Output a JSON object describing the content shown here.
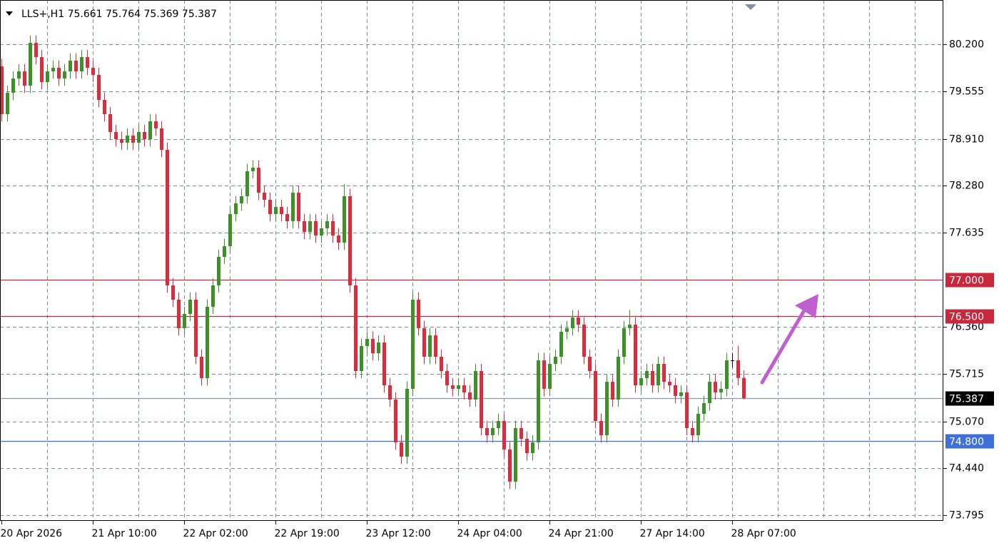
{
  "chart_data": {
    "type": "candlestick",
    "symbol": "LLS+,H1",
    "ylim": [
      73.717,
      80.802
    ],
    "yticks": [
      {
        "value": 80.2,
        "label": "80.200"
      },
      79.555,
      {
        "value": 78.91,
        "label": "78.910"
      },
      {
        "value": 78.28,
        "label": "78.280"
      },
      77.635,
      {
        "value": 76.36,
        "label": "76.360"
      },
      75.715,
      {
        "value": 75.07,
        "label": "75.070"
      },
      {
        "value": 74.44,
        "label": "74.440"
      },
      73.795
    ],
    "xticks": [
      {
        "value": 0,
        "label": "20 Apr 2026"
      },
      {
        "value": 16,
        "label": "21 Apr 10:00"
      },
      {
        "value": 32,
        "label": "22 Apr 02:00"
      },
      {
        "value": 48,
        "label": "22 Apr 19:00"
      },
      {
        "value": 64,
        "label": "23 Apr 12:00"
      },
      {
        "value": 80,
        "label": "24 Apr 04:00"
      },
      {
        "value": 96,
        "label": "24 Apr 21:00"
      },
      {
        "value": 112,
        "label": "27 Apr 14:00"
      },
      {
        "value": 128,
        "label": "28 Apr 07:00"
      }
    ],
    "grid": true,
    "up_color": "#3f8f2a",
    "down_color": "#d0303f",
    "flat_color": "#000000",
    "levels": [
      {
        "value": 77.0,
        "label": "77.000",
        "color": "#c8283c"
      },
      {
        "value": 76.5,
        "label": "76.500",
        "color": "#c8283c"
      },
      {
        "value": 74.8,
        "label": "74.800",
        "color": "#3f6fd8"
      }
    ],
    "ohlc": [
      [
        79.9,
        80.0,
        79.149,
        79.249
      ],
      [
        79.249,
        79.64,
        79.149,
        79.54
      ],
      [
        79.54,
        79.834,
        79.44,
        79.734
      ],
      [
        79.734,
        79.931,
        79.634,
        79.831
      ],
      [
        79.831,
        79.931,
        79.537,
        79.637
      ],
      [
        79.637,
        80.319,
        79.537,
        80.219
      ],
      [
        80.219,
        80.319,
        79.925,
        80.025
      ],
      [
        80.025,
        80.125,
        79.586,
        79.686
      ],
      [
        79.686,
        79.931,
        79.586,
        79.831
      ],
      [
        79.831,
        79.98,
        79.731,
        79.88
      ],
      [
        79.88,
        79.98,
        79.634,
        79.734
      ],
      [
        79.734,
        79.931,
        79.634,
        79.831
      ],
      [
        79.831,
        80.077,
        79.731,
        79.977
      ],
      [
        79.977,
        80.077,
        79.731,
        79.831
      ],
      [
        79.831,
        80.125,
        79.731,
        80.025
      ],
      [
        80.025,
        80.125,
        79.78,
        79.88
      ],
      [
        79.88,
        79.98,
        79.683,
        79.783
      ],
      [
        79.783,
        79.883,
        79.343,
        79.443
      ],
      [
        79.443,
        79.543,
        79.149,
        79.249
      ],
      [
        79.249,
        79.349,
        78.906,
        79.006
      ],
      [
        79.006,
        79.106,
        78.809,
        78.909
      ],
      [
        78.909,
        79.009,
        78.761,
        78.861
      ],
      [
        78.861,
        79.058,
        78.761,
        78.958
      ],
      [
        78.958,
        79.058,
        78.761,
        78.861
      ],
      [
        78.861,
        79.106,
        78.761,
        79.006
      ],
      [
        79.006,
        79.106,
        78.809,
        78.909
      ],
      [
        78.909,
        79.252,
        78.809,
        79.152
      ],
      [
        79.152,
        79.252,
        78.955,
        79.055
      ],
      [
        79.055,
        79.155,
        78.664,
        78.764
      ],
      [
        78.764,
        78.864,
        76.82,
        76.92
      ],
      [
        76.92,
        77.02,
        76.626,
        76.726
      ],
      [
        76.726,
        76.826,
        76.238,
        76.338
      ],
      [
        76.338,
        76.632,
        76.238,
        76.532
      ],
      [
        76.532,
        76.826,
        76.432,
        76.726
      ],
      [
        76.726,
        76.826,
        75.849,
        75.949
      ],
      [
        75.949,
        76.049,
        75.558,
        75.658
      ],
      [
        75.658,
        76.729,
        75.558,
        76.629
      ],
      [
        76.629,
        77.02,
        76.529,
        76.92
      ],
      [
        76.92,
        77.408,
        76.82,
        77.308
      ],
      [
        77.308,
        77.554,
        77.208,
        77.454
      ],
      [
        77.454,
        77.99,
        77.354,
        77.89
      ],
      [
        77.89,
        78.136,
        77.79,
        78.036
      ],
      [
        78.036,
        78.233,
        77.936,
        78.133
      ],
      [
        78.133,
        78.573,
        78.033,
        78.473
      ],
      [
        78.473,
        78.621,
        78.373,
        78.521
      ],
      [
        78.521,
        78.621,
        78.081,
        78.181
      ],
      [
        78.181,
        78.281,
        77.984,
        78.084
      ],
      [
        78.084,
        78.184,
        77.79,
        77.89
      ],
      [
        77.89,
        78.087,
        77.79,
        77.987
      ],
      [
        77.987,
        78.087,
        77.79,
        77.89
      ],
      [
        77.89,
        77.99,
        77.693,
        77.793
      ],
      [
        77.793,
        78.281,
        77.693,
        78.181
      ],
      [
        78.181,
        78.281,
        77.693,
        77.793
      ],
      [
        77.793,
        77.893,
        77.548,
        77.648
      ],
      [
        77.648,
        77.893,
        77.548,
        77.793
      ],
      [
        77.793,
        77.893,
        77.499,
        77.599
      ],
      [
        77.599,
        77.796,
        77.499,
        77.696
      ],
      [
        77.696,
        77.893,
        77.596,
        77.793
      ],
      [
        77.793,
        77.893,
        77.499,
        77.599
      ],
      [
        77.599,
        77.699,
        77.402,
        77.502
      ],
      [
        77.502,
        78.3,
        77.402,
        78.133
      ],
      [
        78.133,
        78.233,
        76.82,
        76.92
      ],
      [
        76.92,
        77.02,
        75.655,
        75.755
      ],
      [
        75.755,
        76.195,
        75.655,
        76.095
      ],
      [
        76.095,
        76.292,
        75.995,
        76.192
      ],
      [
        76.192,
        76.292,
        75.898,
        75.998
      ],
      [
        75.998,
        76.243,
        75.898,
        76.143
      ],
      [
        76.143,
        76.243,
        75.461,
        75.561
      ],
      [
        75.561,
        75.661,
        75.267,
        75.367
      ],
      [
        75.367,
        75.467,
        74.685,
        74.785
      ],
      [
        74.785,
        74.885,
        74.491,
        74.591
      ],
      [
        74.591,
        75.613,
        74.491,
        75.513
      ],
      [
        75.513,
        76.826,
        75.413,
        76.726
      ],
      [
        76.726,
        76.826,
        76.238,
        76.338
      ],
      [
        76.338,
        76.438,
        75.849,
        75.949
      ],
      [
        75.949,
        76.34,
        75.849,
        76.24
      ],
      [
        76.24,
        76.34,
        75.849,
        75.949
      ],
      [
        75.949,
        76.049,
        75.655,
        75.755
      ],
      [
        75.755,
        75.855,
        75.461,
        75.561
      ],
      [
        75.561,
        75.661,
        75.413,
        75.513
      ],
      [
        75.513,
        75.661,
        75.413,
        75.561
      ],
      [
        75.561,
        75.661,
        75.364,
        75.464
      ],
      [
        75.464,
        75.564,
        75.267,
        75.367
      ],
      [
        75.367,
        75.855,
        75.267,
        75.755
      ],
      [
        75.755,
        75.855,
        74.879,
        74.979
      ],
      [
        74.979,
        75.079,
        74.782,
        74.882
      ],
      [
        74.882,
        75.079,
        74.782,
        74.979
      ],
      [
        74.979,
        75.176,
        74.879,
        75.076
      ],
      [
        75.076,
        75.176,
        74.588,
        74.688
      ],
      [
        74.688,
        74.788,
        74.151,
        74.251
      ],
      [
        74.251,
        75.079,
        74.151,
        74.979
      ],
      [
        74.979,
        75.079,
        74.733,
        74.833
      ],
      [
        74.833,
        74.933,
        74.539,
        74.639
      ],
      [
        74.639,
        74.885,
        74.539,
        74.785
      ],
      [
        74.785,
        76.001,
        74.685,
        75.901
      ],
      [
        75.901,
        76.001,
        75.413,
        75.513
      ],
      [
        75.513,
        75.952,
        75.413,
        75.852
      ],
      [
        75.852,
        76.049,
        75.752,
        75.949
      ],
      [
        75.949,
        76.389,
        75.849,
        76.289
      ],
      [
        76.289,
        76.438,
        76.189,
        76.338
      ],
      [
        76.338,
        76.583,
        76.238,
        76.483
      ],
      [
        76.483,
        76.583,
        76.286,
        76.386
      ],
      [
        76.386,
        76.486,
        75.849,
        75.949
      ],
      [
        75.949,
        76.049,
        75.655,
        75.755
      ],
      [
        75.755,
        75.855,
        74.976,
        75.076
      ],
      [
        75.076,
        75.176,
        74.782,
        74.882
      ],
      [
        74.882,
        75.709,
        74.782,
        75.609
      ],
      [
        75.609,
        75.709,
        75.267,
        75.367
      ],
      [
        75.367,
        76.049,
        75.267,
        75.949
      ],
      [
        75.949,
        76.438,
        75.849,
        76.338
      ],
      [
        76.338,
        76.583,
        76.238,
        76.386
      ],
      [
        76.386,
        76.486,
        75.461,
        75.561
      ],
      [
        75.561,
        75.758,
        75.461,
        75.658
      ],
      [
        75.658,
        75.855,
        75.558,
        75.755
      ],
      [
        75.755,
        75.855,
        75.461,
        75.561
      ],
      [
        75.561,
        75.952,
        75.461,
        75.852
      ],
      [
        75.852,
        75.952,
        75.509,
        75.609
      ],
      [
        75.609,
        75.709,
        75.461,
        75.561
      ],
      [
        75.561,
        75.661,
        75.316,
        75.416
      ],
      [
        75.416,
        75.564,
        75.316,
        75.464
      ],
      [
        75.464,
        75.564,
        74.879,
        74.979
      ],
      [
        74.979,
        75.079,
        74.782,
        74.882
      ],
      [
        74.882,
        75.273,
        74.782,
        75.173
      ],
      [
        75.173,
        75.418,
        75.073,
        75.318
      ],
      [
        75.318,
        75.709,
        75.218,
        75.609
      ],
      [
        75.609,
        75.709,
        75.364,
        75.464
      ],
      [
        75.464,
        75.613,
        75.364,
        75.513
      ],
      [
        75.513,
        76.001,
        75.413,
        75.901
      ],
      [
        75.901,
        76.001,
        75.801,
        75.901
      ],
      [
        75.901,
        76.1,
        75.561,
        75.661
      ],
      [
        75.661,
        75.764,
        75.369,
        75.387
      ]
    ]
  }
}
